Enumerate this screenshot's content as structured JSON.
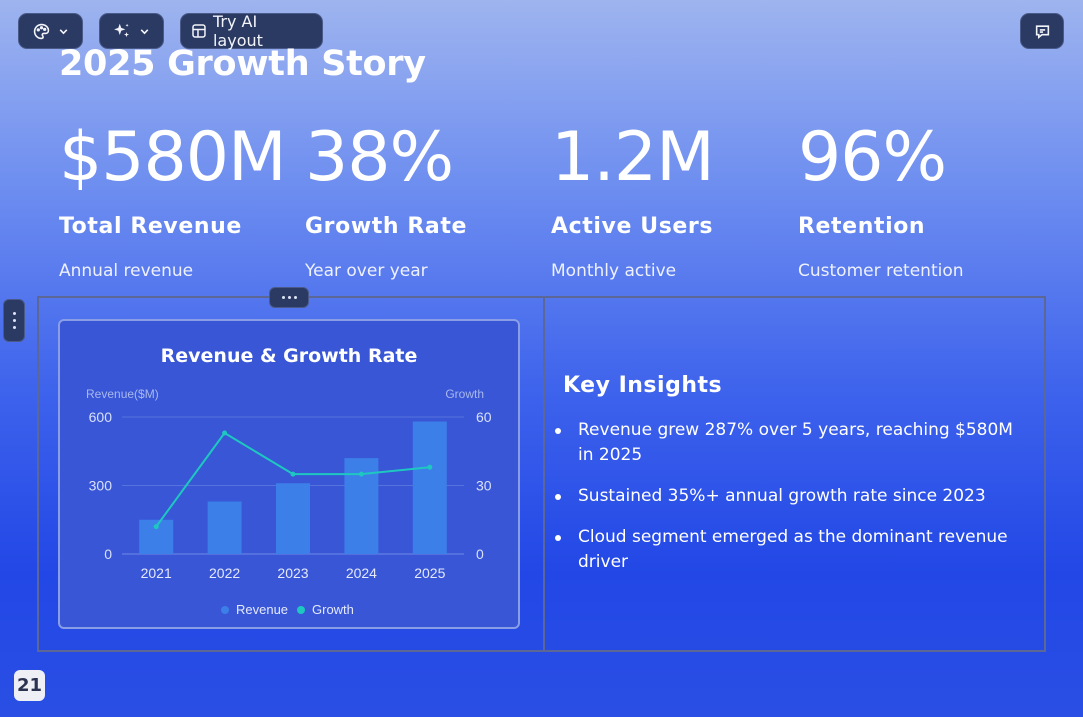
{
  "toolbar": {
    "theme_icon": "palette-icon",
    "ai_icon": "sparkle-icon",
    "layout_label": "Try AI layout",
    "layout_icon": "layout-icon",
    "comment_icon": "comment-icon"
  },
  "slide": {
    "title": "2025 Growth Story",
    "stats": [
      {
        "value": "$580M",
        "label": "Total Revenue",
        "desc": "Annual revenue"
      },
      {
        "value": "38%",
        "label": "Growth Rate",
        "desc": "Year over year"
      },
      {
        "value": "1.2M",
        "label": "Active Users",
        "desc": "Monthly active"
      },
      {
        "value": "96%",
        "label": "Retention",
        "desc": "Customer retention"
      }
    ],
    "insights": {
      "title": "Key Insights",
      "items": [
        "Revenue grew 287% over 5 years, reaching $580M in 2025",
        "Sustained 35%+ annual growth rate since 2023",
        "Cloud segment emerged as the dominant revenue driver"
      ]
    },
    "page_number": "21"
  },
  "colors": {
    "bar": "#3d7fe8",
    "line": "#1ec8c0"
  },
  "chart_data": {
    "type": "bar",
    "title": "Revenue & Growth Rate",
    "categories": [
      "2021",
      "2022",
      "2023",
      "2024",
      "2025"
    ],
    "ylabel": "Revenue($M)",
    "y2label": "Growth",
    "ylim": [
      0,
      600
    ],
    "y2lim": [
      0,
      60
    ],
    "yticks": [
      "0",
      "300",
      "600"
    ],
    "y2ticks": [
      "0",
      "30",
      "60"
    ],
    "series": [
      {
        "name": "Revenue",
        "type": "bar",
        "values": [
          150,
          230,
          310,
          420,
          580
        ]
      },
      {
        "name": "Growth",
        "type": "line",
        "values": [
          12,
          53,
          35,
          35,
          38
        ]
      }
    ],
    "legend": "bottom-center"
  }
}
